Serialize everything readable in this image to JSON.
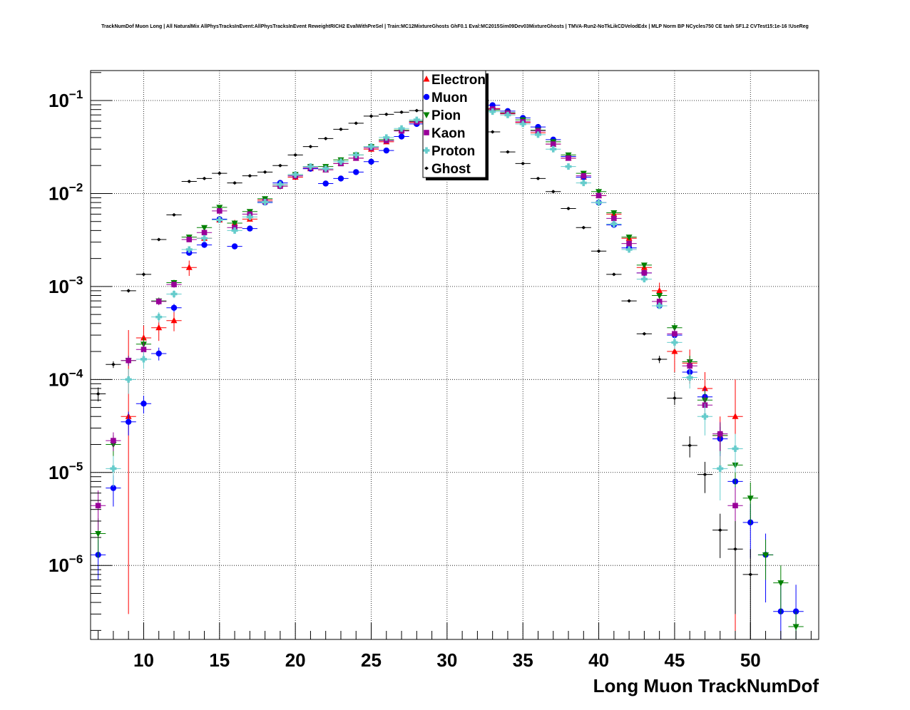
{
  "title": "TrackNumDof Muon Long | All NaturalMix AllPhysTracksInEvent:AllPhysTracksInEvent ReweightRICH2 EvalWithPreSel | Train:MC12MixtureGhosts GhF0.1 Eval:MC2015Sim09Dev03MixtureGhosts | TMVA-Run2-NoTkLikCDVelodEdx | MLP Norm BP NCycles750 CE tanh SF1.2 CVTest15:1e-16 !UseReg",
  "chart_data": {
    "type": "scatter",
    "title": "TrackNumDof Muon Long | All NaturalMix AllPhysTracksInEvent:AllPhysTracksInEvent ReweightRICH2 EvalWithPreSel | Train:MC12MixtureGhosts GhF0.1 Eval:MC2015Sim09Dev03MixtureGhosts | TMVA-Run2-NoTkLikCDVelodEdx | MLP Norm BP NCycles750 CE tanh SF1.2 CVTest15:1e-16 !UseReg",
    "xlabel": "Long Muon TrackNumDof",
    "ylabel": "",
    "xlim": [
      6.5,
      54.5
    ],
    "ylim": [
      1.6e-07,
      0.21
    ],
    "yscale": "log",
    "grid": true,
    "legend_position": "top-center",
    "x_ticks": [
      10,
      15,
      20,
      25,
      30,
      35,
      40,
      45,
      50
    ],
    "x_tick_labels": [
      "10",
      "15",
      "20",
      "25",
      "30",
      "35",
      "40",
      "45",
      "50"
    ],
    "y_ticks": [
      1e-06,
      1e-05,
      0.0001,
      0.001,
      0.01,
      0.1
    ],
    "y_tick_labels": [
      {
        "base": "10",
        "exp": "−6"
      },
      {
        "base": "10",
        "exp": "−5"
      },
      {
        "base": "10",
        "exp": "−4"
      },
      {
        "base": "10",
        "exp": "−3"
      },
      {
        "base": "10",
        "exp": "−2"
      },
      {
        "base": "10",
        "exp": "−1"
      }
    ],
    "series": [
      {
        "name": "Electron",
        "color": "#ff0000",
        "marker": "triangle-up",
        "x": [
          9,
          10,
          11,
          12,
          13,
          14,
          15,
          16,
          17,
          18,
          19,
          20,
          21,
          22,
          23,
          24,
          25,
          26,
          27,
          28,
          29,
          30,
          31,
          32,
          33,
          34,
          35,
          36,
          37,
          38,
          39,
          40,
          41,
          42,
          43,
          44,
          45,
          46,
          47,
          48,
          49
        ],
        "y": [
          4e-05,
          0.00028,
          0.00036,
          0.00043,
          0.0016,
          0.0033,
          0.0052,
          0.0048,
          0.0053,
          0.0085,
          0.0125,
          0.015,
          0.0185,
          0.018,
          0.021,
          0.024,
          0.03,
          0.036,
          0.048,
          0.058,
          0.067,
          0.076,
          0.083,
          0.085,
          0.082,
          0.072,
          0.058,
          0.045,
          0.034,
          0.024,
          0.015,
          0.0095,
          0.006,
          0.0033,
          0.0016,
          0.0009,
          0.0002,
          0.00015,
          8e-05,
          2.5e-05,
          4e-05
        ],
        "yerr_lo": [
          3.97e-05,
          0.0001,
          0.0001,
          0.0001,
          0.0003,
          0,
          0,
          0,
          0,
          0,
          0,
          0,
          0,
          0,
          0,
          0,
          0,
          0,
          0,
          0,
          0,
          0,
          0,
          0,
          0,
          0,
          0,
          0,
          0,
          0,
          0,
          0,
          0,
          0,
          0,
          0.0002,
          8e-05,
          6e-05,
          4e-05,
          1.5e-05,
          3.99e-05
        ],
        "yerr_hi": [
          0.0003,
          0.0001,
          0.0001,
          0.0001,
          0.0003,
          0,
          0,
          0,
          0,
          0,
          0,
          0,
          0,
          0,
          0,
          0,
          0,
          0,
          0,
          0,
          0,
          0,
          0,
          0,
          0,
          0,
          0,
          0,
          0,
          0,
          0,
          0,
          0,
          0,
          0,
          0.0002,
          8e-05,
          6e-05,
          4e-05,
          1.5e-05,
          6e-05
        ]
      },
      {
        "name": "Muon",
        "color": "#0000ff",
        "marker": "circle",
        "x": [
          7,
          8,
          9,
          10,
          11,
          12,
          13,
          14,
          15,
          16,
          17,
          18,
          19,
          20,
          21,
          22,
          23,
          24,
          25,
          26,
          27,
          28,
          29,
          30,
          31,
          32,
          33,
          34,
          35,
          36,
          37,
          38,
          39,
          40,
          41,
          42,
          43,
          44,
          45,
          46,
          47,
          48,
          49,
          50,
          51,
          52,
          53
        ],
        "y": [
          1.3e-06,
          6.8e-06,
          3.5e-05,
          5.5e-05,
          0.00019,
          0.00059,
          0.0023,
          0.0028,
          0.0053,
          0.0027,
          0.0042,
          0.008,
          0.013,
          0.0155,
          0.0185,
          0.0128,
          0.0145,
          0.017,
          0.022,
          0.029,
          0.041,
          0.056,
          0.069,
          0.078,
          0.085,
          0.088,
          0.089,
          0.077,
          0.065,
          0.052,
          0.038,
          0.025,
          0.015,
          0.008,
          0.0046,
          0.0026,
          0.0014,
          0.00062,
          0.0003,
          0.00012,
          6.5e-05,
          2.3e-05,
          8e-06,
          2.9e-06,
          1.3e-06,
          3.2e-07,
          3.2e-07
        ],
        "yerr_lo": [
          6e-07,
          2.5e-06,
          1e-05,
          1.2e-05,
          3e-05,
          6e-05,
          0,
          0,
          0,
          0,
          0,
          0,
          0,
          0,
          0,
          0,
          0,
          0,
          0,
          0,
          0,
          0,
          0,
          0,
          0,
          0,
          0,
          0,
          0,
          0,
          0,
          0,
          0,
          0,
          0,
          0,
          0,
          0,
          4e-05,
          2e-05,
          1.5e-05,
          8e-06,
          4e-06,
          1.7e-06,
          9e-07,
          2.5e-07,
          2.5e-07
        ],
        "yerr_hi": [
          6e-07,
          2.5e-06,
          1e-05,
          1.2e-05,
          3e-05,
          6e-05,
          0,
          0,
          0,
          0,
          0,
          0,
          0,
          0,
          0,
          0,
          0,
          0,
          0,
          0,
          0,
          0,
          0,
          0,
          0,
          0,
          0,
          0,
          0,
          0,
          0,
          0,
          0,
          0,
          0,
          0,
          0,
          0,
          4e-05,
          2e-05,
          1.5e-05,
          8e-06,
          4e-06,
          1.7e-06,
          9e-07,
          3e-07,
          3e-07
        ]
      },
      {
        "name": "Pion",
        "color": "#008000",
        "marker": "triangle-down",
        "x": [
          7,
          8,
          9,
          10,
          11,
          12,
          13,
          14,
          15,
          16,
          17,
          18,
          19,
          20,
          21,
          22,
          23,
          24,
          25,
          26,
          27,
          28,
          29,
          30,
          31,
          32,
          33,
          34,
          35,
          36,
          37,
          38,
          39,
          40,
          41,
          42,
          43,
          44,
          45,
          46,
          47,
          48,
          49,
          50,
          51,
          52,
          53
        ],
        "y": [
          2.2e-06,
          2e-05,
          0.00016,
          0.00024,
          0.0007,
          0.0011,
          0.0034,
          0.0043,
          0.0071,
          0.0048,
          0.0064,
          0.0088,
          0.012,
          0.016,
          0.0195,
          0.0195,
          0.023,
          0.026,
          0.032,
          0.038,
          0.048,
          0.06,
          0.07,
          0.078,
          0.083,
          0.082,
          0.079,
          0.074,
          0.062,
          0.048,
          0.036,
          0.026,
          0.0165,
          0.0105,
          0.0062,
          0.0034,
          0.0017,
          0.0008,
          0.00036,
          0.000155,
          6e-05,
          2.5e-05,
          1.2e-05,
          5.3e-06,
          1.3e-06,
          6.5e-07,
          2.2e-07
        ],
        "yerr_lo": [
          1e-06,
          5e-06,
          2e-05,
          4e-05,
          6e-05,
          8e-05,
          0,
          0,
          0,
          0,
          0,
          0,
          0,
          0,
          0,
          0,
          0,
          0,
          0,
          0,
          0,
          0,
          0,
          0,
          0,
          0,
          0,
          0,
          0,
          0,
          0,
          0,
          0,
          0,
          0,
          0,
          0,
          0,
          4e-05,
          2.5e-05,
          1.5e-05,
          9e-06,
          5e-06,
          2.5e-06,
          6e-07,
          3.5e-07,
          1e-07
        ],
        "yerr_hi": [
          1e-06,
          5e-06,
          2e-05,
          4e-05,
          6e-05,
          8e-05,
          0,
          0,
          0,
          0,
          0,
          0,
          0,
          0,
          0,
          0,
          0,
          0,
          0,
          0,
          0,
          0,
          0,
          0,
          0,
          0,
          0,
          0,
          0,
          0,
          0,
          0,
          0,
          0,
          0,
          0,
          0,
          0,
          4e-05,
          2.5e-05,
          1.5e-05,
          9e-06,
          5e-06,
          2.5e-06,
          6e-07,
          3.5e-07,
          1e-07
        ]
      },
      {
        "name": "Kaon",
        "color": "#990099",
        "marker": "square",
        "x": [
          7,
          8,
          9,
          10,
          11,
          12,
          13,
          14,
          15,
          16,
          17,
          18,
          19,
          20,
          21,
          22,
          23,
          24,
          25,
          26,
          27,
          28,
          29,
          30,
          31,
          32,
          33,
          34,
          35,
          36,
          37,
          38,
          39,
          40,
          41,
          42,
          43,
          44,
          45,
          46,
          47,
          48,
          49
        ],
        "y": [
          4.4e-06,
          2.2e-05,
          0.00016,
          0.00021,
          0.00069,
          0.00105,
          0.0032,
          0.0038,
          0.0065,
          0.0043,
          0.006,
          0.0082,
          0.012,
          0.0155,
          0.019,
          0.018,
          0.021,
          0.024,
          0.031,
          0.037,
          0.047,
          0.059,
          0.068,
          0.077,
          0.083,
          0.082,
          0.081,
          0.073,
          0.059,
          0.047,
          0.034,
          0.024,
          0.0155,
          0.0095,
          0.0054,
          0.0029,
          0.0014,
          0.00069,
          0.00031,
          0.00014,
          5.3e-05,
          2.6e-05,
          4.4e-06
        ],
        "yerr_lo": [
          2e-06,
          5e-06,
          2e-05,
          4e-05,
          6e-05,
          8e-05,
          0,
          0,
          0,
          0,
          0,
          0,
          0,
          0,
          0,
          0,
          0,
          0,
          0,
          0,
          0,
          0,
          0,
          0,
          0,
          0,
          0,
          0,
          0,
          0,
          0,
          0,
          0,
          0,
          0,
          0,
          0,
          0,
          4e-05,
          2.5e-05,
          1.5e-05,
          9e-06,
          2.5e-06
        ],
        "yerr_hi": [
          2e-06,
          5e-06,
          2e-05,
          4e-05,
          6e-05,
          8e-05,
          0,
          0,
          0,
          0,
          0,
          0,
          0,
          0,
          0,
          0,
          0,
          0,
          0,
          0,
          0,
          0,
          0,
          0,
          0,
          0,
          0,
          0,
          0,
          0,
          0,
          0,
          0,
          0,
          0,
          0,
          0,
          0,
          4e-05,
          2.5e-05,
          1.5e-05,
          9e-06,
          2.5e-06
        ]
      },
      {
        "name": "Proton",
        "color": "#66cccc",
        "marker": "cross",
        "x": [
          8,
          9,
          10,
          11,
          12,
          13,
          14,
          15,
          16,
          17,
          18,
          19,
          20,
          21,
          22,
          23,
          24,
          25,
          26,
          27,
          28,
          29,
          30,
          31,
          32,
          33,
          34,
          35,
          36,
          37,
          38,
          39,
          40,
          41,
          42,
          43,
          44,
          45,
          46,
          47,
          48,
          49
        ],
        "y": [
          1.1e-05,
          0.0001,
          0.000165,
          0.00047,
          0.00083,
          0.0025,
          0.0033,
          0.0052,
          0.004,
          0.0056,
          0.0081,
          0.0125,
          0.016,
          0.0195,
          0.0185,
          0.022,
          0.026,
          0.032,
          0.04,
          0.05,
          0.062,
          0.071,
          0.078,
          0.082,
          0.08,
          0.076,
          0.07,
          0.056,
          0.043,
          0.03,
          0.0195,
          0.013,
          0.008,
          0.0047,
          0.0025,
          0.0012,
          0.00062,
          0.00025,
          0.000105,
          4e-05,
          1.1e-05,
          1.8e-05
        ],
        "yerr_lo": [
          4e-06,
          3e-05,
          3.5e-05,
          6e-05,
          8e-05,
          0,
          0,
          0,
          0,
          0,
          0,
          0,
          0,
          0,
          0,
          0,
          0,
          0,
          0,
          0,
          0,
          0,
          0,
          0,
          0,
          0,
          0,
          0,
          0,
          0,
          0,
          0,
          0,
          0,
          0,
          0,
          0,
          4e-05,
          2.5e-05,
          1.5e-05,
          6e-06,
          8e-06
        ],
        "yerr_hi": [
          4e-06,
          3e-05,
          3.5e-05,
          6e-05,
          8e-05,
          0,
          0,
          0,
          0,
          0,
          0,
          0,
          0,
          0,
          0,
          0,
          0,
          0,
          0,
          0,
          0,
          0,
          0,
          0,
          0,
          0,
          0,
          0,
          0,
          0,
          0,
          0,
          0,
          0,
          0,
          0,
          0,
          4e-05,
          2.5e-05,
          1.5e-05,
          6e-06,
          8e-06
        ]
      },
      {
        "name": "Ghost",
        "color": "#000000",
        "marker": "diamond",
        "x": [
          7,
          8,
          9,
          10,
          11,
          12,
          13,
          14,
          15,
          16,
          17,
          18,
          19,
          20,
          21,
          22,
          23,
          24,
          25,
          26,
          27,
          28,
          29,
          30,
          31,
          32,
          33,
          34,
          35,
          36,
          37,
          38,
          39,
          40,
          41,
          42,
          43,
          44,
          45,
          46,
          47,
          48,
          49,
          50
        ],
        "y": [
          7e-05,
          0.000145,
          0.0009,
          0.00135,
          0.0032,
          0.0059,
          0.0135,
          0.0145,
          0.0165,
          0.013,
          0.0155,
          0.017,
          0.02,
          0.026,
          0.032,
          0.039,
          0.049,
          0.057,
          0.068,
          0.071,
          0.075,
          0.078,
          0.079,
          0.074,
          0.07,
          0.055,
          0.046,
          0.028,
          0.021,
          0.0145,
          0.0105,
          0.0069,
          0.0043,
          0.0024,
          0.00135,
          0.0007,
          0.00031,
          0.000165,
          6.3e-05,
          1.95e-05,
          9.5e-06,
          2.4e-06,
          1.5e-06,
          8e-07
        ],
        "yerr_lo": [
          1.2e-05,
          1.2e-05,
          4e-05,
          5e-05,
          0,
          0,
          0,
          0,
          0,
          0,
          0,
          0,
          0,
          0,
          0,
          0,
          0,
          0,
          0,
          0,
          0,
          0,
          0,
          0,
          0,
          0,
          0,
          0,
          0,
          0,
          0,
          0,
          0,
          0,
          0,
          0,
          0,
          1.5e-05,
          1e-05,
          5e-06,
          3.5e-06,
          1.2e-06,
          1.2e-06,
          7e-07
        ],
        "yerr_hi": [
          1.2e-05,
          1.2e-05,
          4e-05,
          5e-05,
          0,
          0,
          0,
          0,
          0,
          0,
          0,
          0,
          0,
          0,
          0,
          0,
          0,
          0,
          0,
          0,
          0,
          0,
          0,
          0,
          0,
          0,
          0,
          0,
          0,
          0,
          0,
          0,
          0,
          0,
          0,
          0,
          0,
          1.5e-05,
          1e-05,
          5e-06,
          3.5e-06,
          1.2e-06,
          1.5e-06,
          7e-07
        ]
      }
    ]
  }
}
